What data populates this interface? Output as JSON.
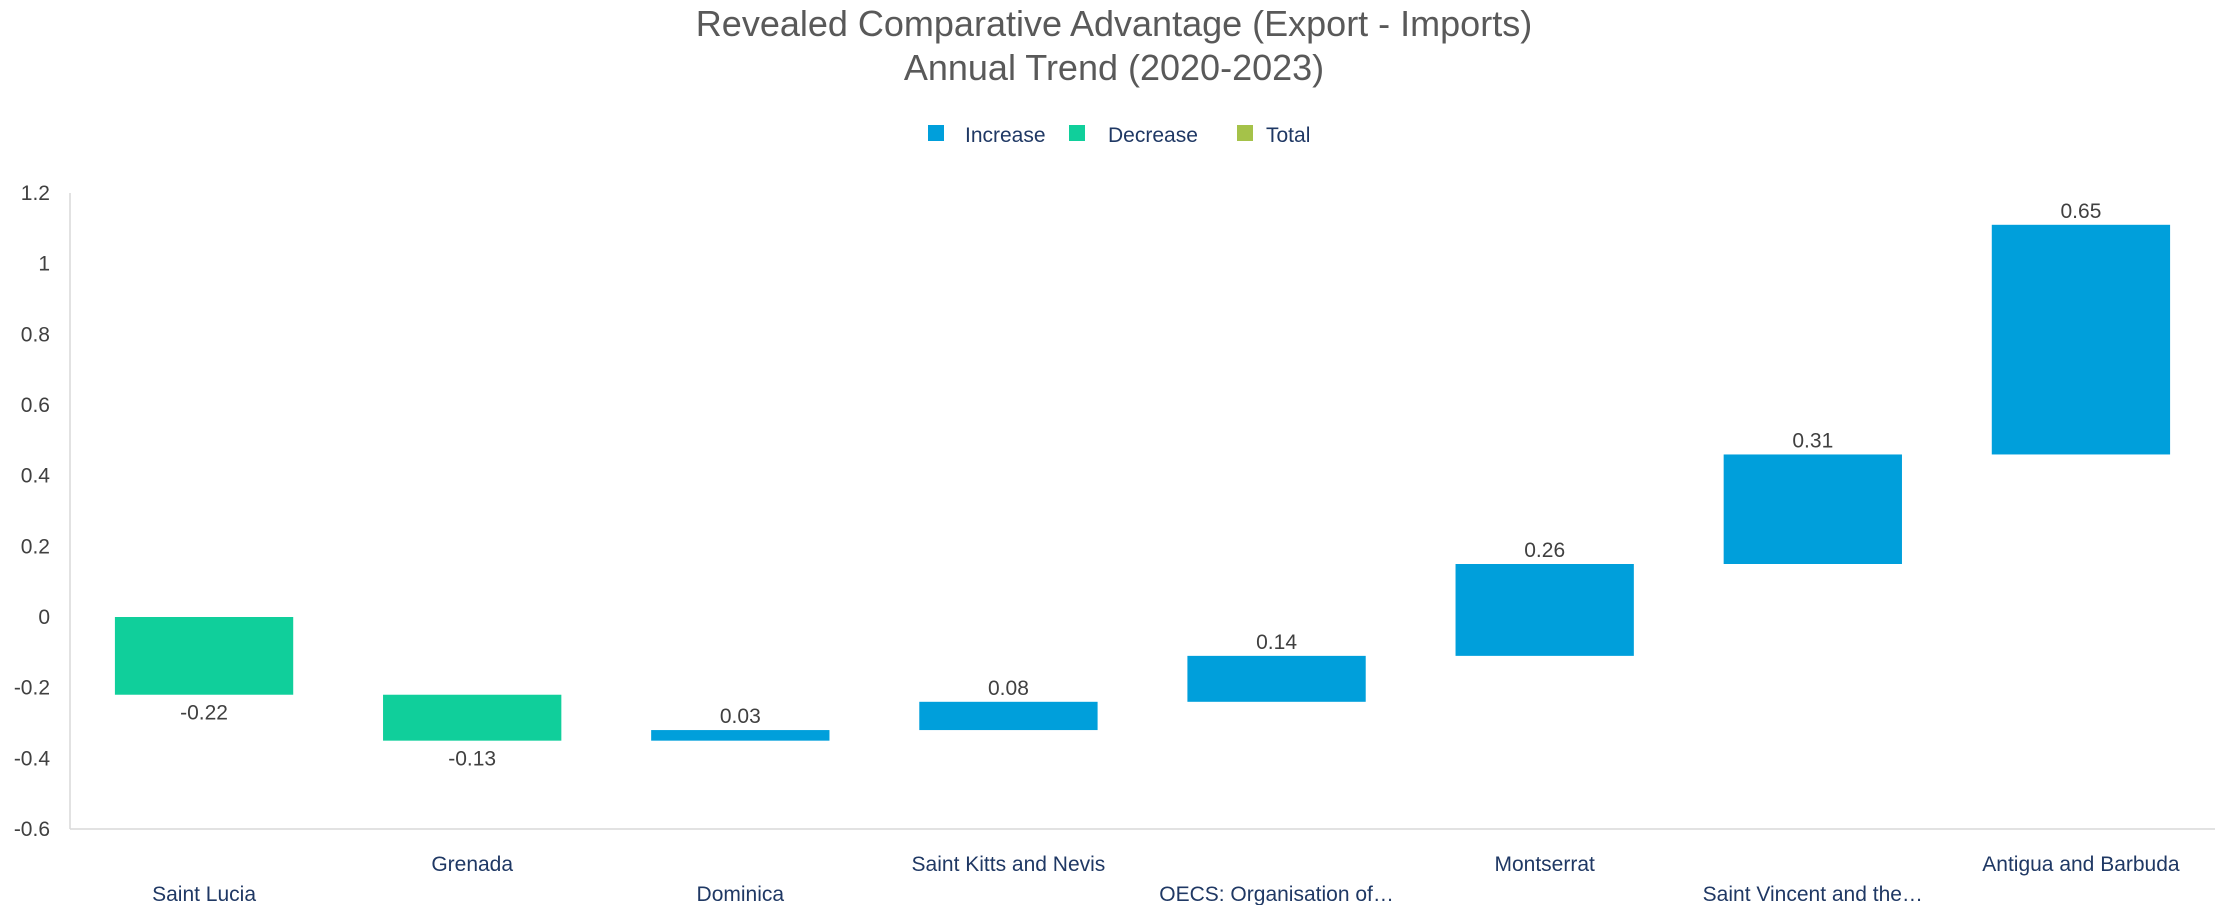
{
  "chart_data": {
    "type": "bar",
    "title_lines": [
      "Revealed Comparative Advantage (Export - Imports)",
      "Annual Trend (2020-2023)"
    ],
    "legend": [
      {
        "label": "Increase",
        "color": "#009fdb"
      },
      {
        "label": "Decrease",
        "color": "#10cf9b"
      },
      {
        "label": "Total",
        "color": "#a5c249"
      }
    ],
    "y_ticks": [
      "1.2",
      "1",
      "0.8",
      "0.6",
      "0.4",
      "0.2",
      "0",
      "-0.2",
      "-0.4",
      "-0.6"
    ],
    "ylim": [
      -0.6,
      1.2
    ],
    "categories": [
      "Saint Lucia",
      "Grenada",
      "Dominica",
      "Saint Kitts and Nevis",
      "OECS: Organisation of…",
      "Montserrat",
      "Saint Vincent and the…",
      "Antigua and Barbuda"
    ],
    "bars": [
      {
        "category": "Saint Lucia",
        "value": -0.22,
        "label": "-0.22",
        "kind": "decrease",
        "start": 0,
        "end": -0.22
      },
      {
        "category": "Grenada",
        "value": -0.13,
        "label": "-0.13",
        "kind": "decrease",
        "start": -0.22,
        "end": -0.35
      },
      {
        "category": "Dominica",
        "value": 0.03,
        "label": "0.03",
        "kind": "increase",
        "start": -0.35,
        "end": -0.32
      },
      {
        "category": "Saint Kitts and Nevis",
        "value": 0.08,
        "label": "0.08",
        "kind": "increase",
        "start": -0.32,
        "end": -0.24
      },
      {
        "category": "OECS: Organisation of…",
        "value": 0.14,
        "label": "0.14",
        "kind": "increase",
        "start": -0.24,
        "end": -0.11
      },
      {
        "category": "Montserrat",
        "value": 0.26,
        "label": "0.26",
        "kind": "increase",
        "start": -0.11,
        "end": 0.15
      },
      {
        "category": "Saint Vincent and the…",
        "value": 0.31,
        "label": "0.31",
        "kind": "increase",
        "start": 0.15,
        "end": 0.46
      },
      {
        "category": "Antigua and Barbuda",
        "value": 0.65,
        "label": "0.65",
        "kind": "increase",
        "start": 0.46,
        "end": 1.11
      }
    ],
    "colors": {
      "increase": "#009fdb",
      "decrease": "#10cf9b",
      "total": "#a5c249",
      "axis": "#d9d9d9"
    }
  }
}
